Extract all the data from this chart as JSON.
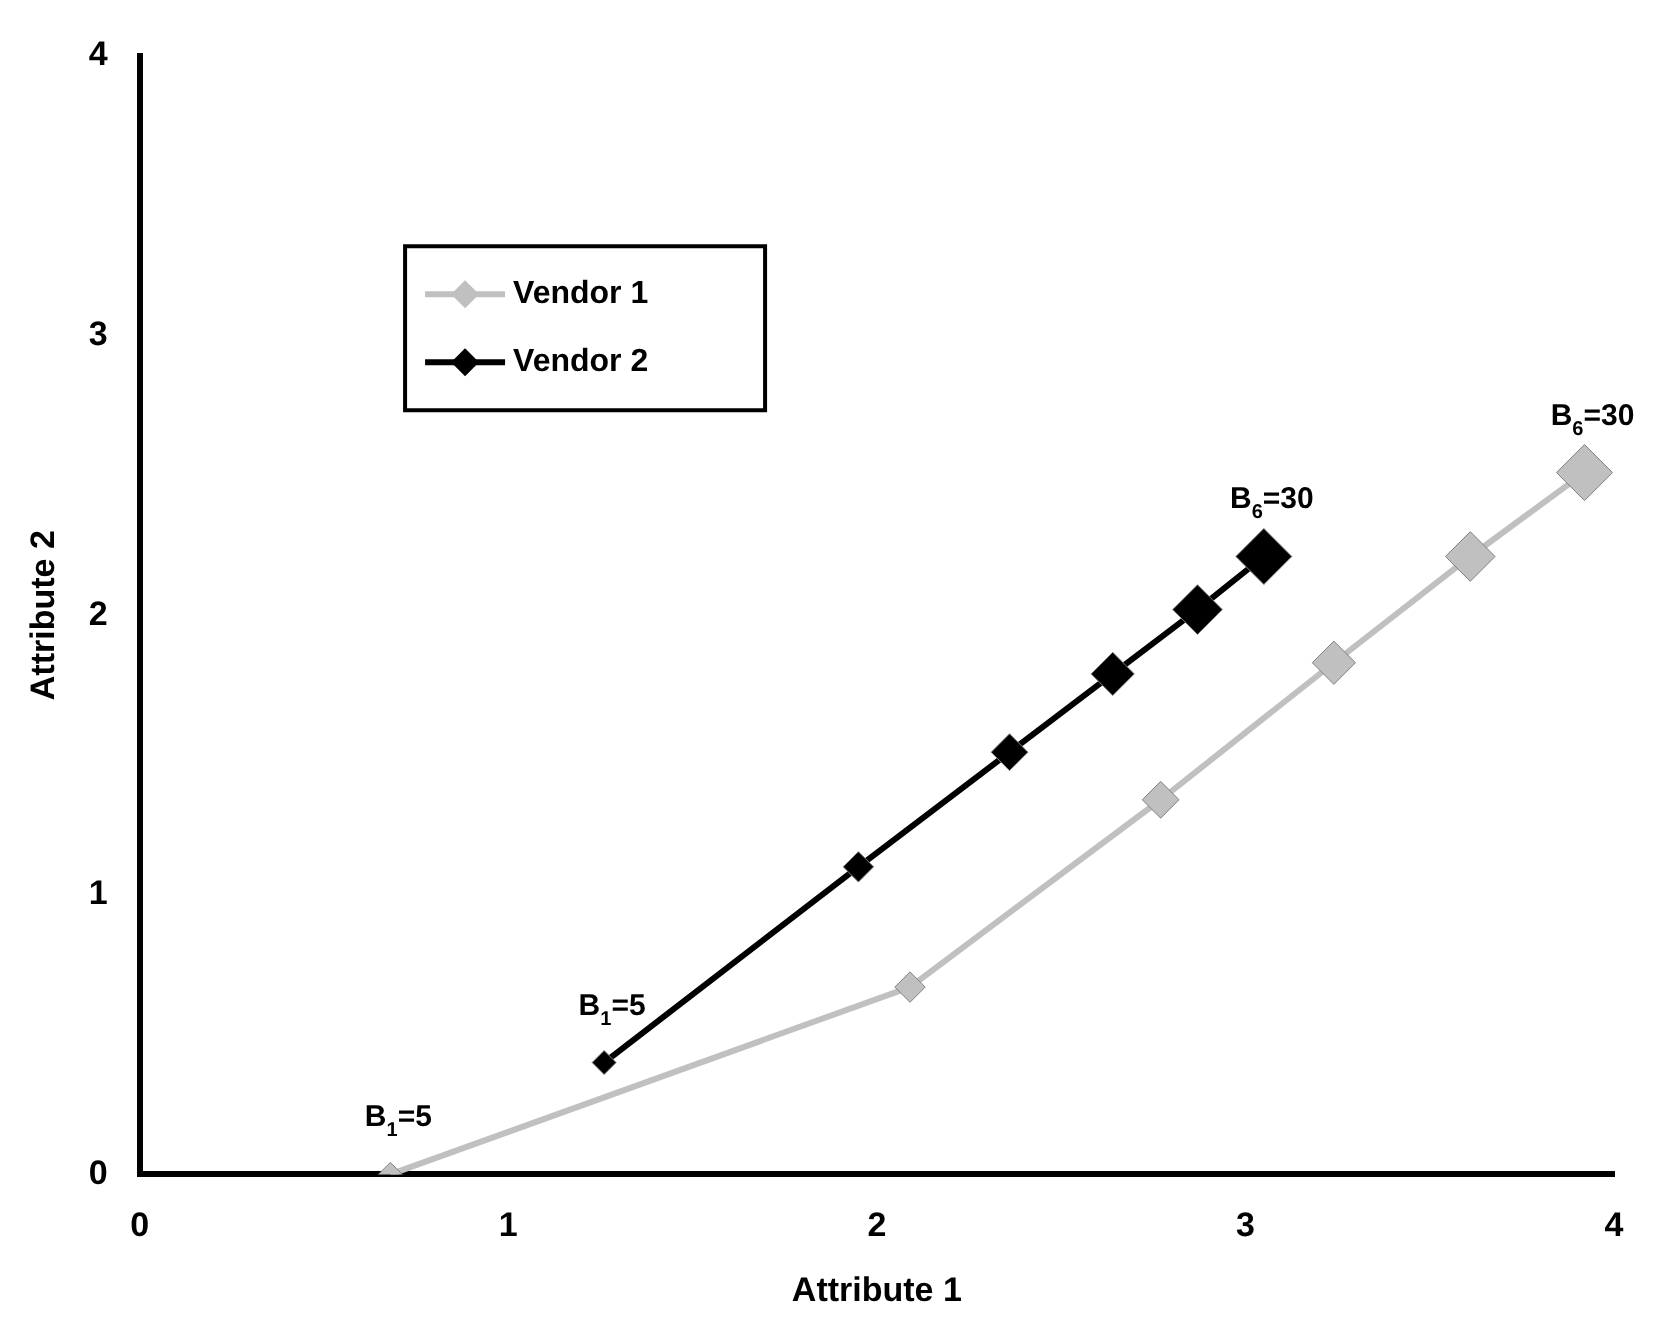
{
  "chart_data": {
    "type": "line",
    "xlabel": "Attribute 1",
    "ylabel": "Attribute 2",
    "xlim": [
      0,
      4
    ],
    "xticks": [
      0,
      1,
      2,
      3,
      4
    ],
    "ylim": [
      0,
      4
    ],
    "yticks": [
      0,
      1,
      2,
      3,
      4
    ],
    "grid": false,
    "legend": "top left",
    "marker": "diamond",
    "line_style": "solid",
    "series": [
      {
        "name": "Vendor 1",
        "color": "#c0c0c0",
        "x": [
          0.68,
          2.09,
          2.77,
          3.24,
          3.61,
          3.92
        ],
        "values": [
          0,
          0.67,
          1.34,
          1.83,
          2.21,
          2.51
        ]
      },
      {
        "name": "Vendor 2",
        "color": "#000000",
        "x": [
          1.26,
          1.95,
          2.36,
          2.64,
          2.87,
          3.05
        ],
        "values": [
          0.4,
          1.1,
          1.51,
          1.79,
          2.02,
          2.21
        ]
      }
    ],
    "annotations": [
      {
        "text": "B$_{1}$=5",
        "x": 0.68,
        "y": 0
      },
      {
        "text": "B$_{6}$=30",
        "x": 3.92,
        "y": 2.51
      },
      {
        "text": "B$_{1}$=5",
        "x": 1.26,
        "y": 0.4
      },
      {
        "text": "B$_{6}$=30",
        "x": 3.05,
        "y": 2.21
      }
    ]
  }
}
